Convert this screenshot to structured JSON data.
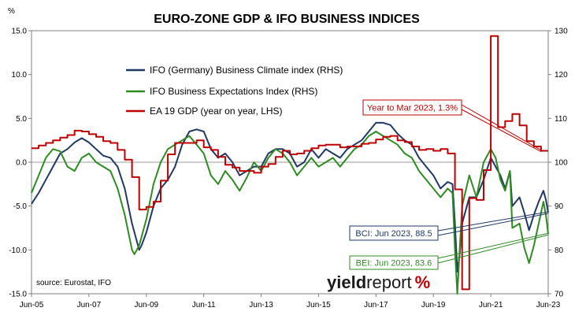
{
  "chart_data": {
    "type": "line",
    "title": "EURO-ZONE GDP & IFO BUSINESS INDICES",
    "y_left": {
      "unit": "%",
      "range": [
        -15,
        15
      ],
      "ticks": [
        "15.0",
        "10.0",
        "5.0",
        "0.0",
        "-5.0",
        "-10.0",
        "-15.0"
      ]
    },
    "y_right": {
      "range": [
        70,
        130
      ],
      "ticks": [
        "130",
        "120",
        "110",
        "100",
        "90",
        "80",
        "70"
      ]
    },
    "x": {
      "range": [
        "2005-06",
        "2023-06"
      ],
      "ticks": [
        "Jun-05",
        "Jun-07",
        "Jun-09",
        "Jun-11",
        "Jun-13",
        "Jun-15",
        "Jun-17",
        "Jun-19",
        "Jun-21",
        "Jun-23"
      ]
    },
    "legend_placement": "top-left",
    "source": "source: Eurostat, IFO",
    "watermark": {
      "part1": "yield",
      "part2": "report",
      "part3": "%"
    },
    "series": [
      {
        "name": "IFO (Germany) Business Climate index (RHS)",
        "axis": "right",
        "color": "#1f3864",
        "points": [
          [
            "2005-06",
            90.5
          ],
          [
            "2005-09",
            93
          ],
          [
            "2005-12",
            96
          ],
          [
            "2006-03",
            99
          ],
          [
            "2006-06",
            102
          ],
          [
            "2006-09",
            103
          ],
          [
            "2006-12",
            104.5
          ],
          [
            "2007-03",
            105.5
          ],
          [
            "2007-06",
            104.5
          ],
          [
            "2007-09",
            103
          ],
          [
            "2007-12",
            101.5
          ],
          [
            "2008-03",
            101
          ],
          [
            "2008-06",
            99
          ],
          [
            "2008-09",
            94
          ],
          [
            "2008-12",
            86
          ],
          [
            "2009-03",
            80
          ],
          [
            "2009-04",
            81
          ],
          [
            "2009-06",
            84
          ],
          [
            "2009-09",
            90
          ],
          [
            "2009-12",
            94
          ],
          [
            "2010-03",
            96
          ],
          [
            "2010-06",
            99
          ],
          [
            "2010-09",
            104
          ],
          [
            "2010-12",
            107
          ],
          [
            "2011-03",
            107.5
          ],
          [
            "2011-06",
            107
          ],
          [
            "2011-09",
            103
          ],
          [
            "2011-12",
            101
          ],
          [
            "2012-03",
            102
          ],
          [
            "2012-06",
            100
          ],
          [
            "2012-09",
            97
          ],
          [
            "2012-12",
            98
          ],
          [
            "2013-03",
            99
          ],
          [
            "2013-06",
            99
          ],
          [
            "2013-09",
            102
          ],
          [
            "2013-12",
            103
          ],
          [
            "2014-03",
            103
          ],
          [
            "2014-06",
            102
          ],
          [
            "2014-09",
            99
          ],
          [
            "2014-12",
            100
          ],
          [
            "2015-03",
            103
          ],
          [
            "2015-06",
            101
          ],
          [
            "2015-09",
            103
          ],
          [
            "2015-12",
            102
          ],
          [
            "2016-03",
            101
          ],
          [
            "2016-06",
            103
          ],
          [
            "2016-09",
            104
          ],
          [
            "2016-12",
            105
          ],
          [
            "2017-03",
            107
          ],
          [
            "2017-06",
            109
          ],
          [
            "2017-09",
            109
          ],
          [
            "2017-12",
            108.5
          ],
          [
            "2018-03",
            106.5
          ],
          [
            "2018-06",
            105
          ],
          [
            "2018-09",
            104
          ],
          [
            "2018-12",
            101
          ],
          [
            "2019-03",
            99
          ],
          [
            "2019-06",
            97
          ],
          [
            "2019-09",
            94
          ],
          [
            "2019-12",
            95.5
          ],
          [
            "2020-02",
            95
          ],
          [
            "2020-03",
            86
          ],
          [
            "2020-04",
            75
          ],
          [
            "2020-05",
            79
          ],
          [
            "2020-06",
            86
          ],
          [
            "2020-09",
            92
          ],
          [
            "2020-12",
            92
          ],
          [
            "2021-03",
            96
          ],
          [
            "2021-06",
            101
          ],
          [
            "2021-08",
            99
          ],
          [
            "2021-10",
            97
          ],
          [
            "2021-12",
            94
          ],
          [
            "2022-02",
            98
          ],
          [
            "2022-03",
            90
          ],
          [
            "2022-06",
            92
          ],
          [
            "2022-08",
            88.5
          ],
          [
            "2022-10",
            84.5
          ],
          [
            "2022-12",
            88
          ],
          [
            "2023-02",
            91
          ],
          [
            "2023-04",
            93.5
          ],
          [
            "2023-05",
            91.5
          ],
          [
            "2023-06",
            88.5
          ]
        ]
      },
      {
        "name": "IFO Business Expectations Index (RHS)",
        "axis": "right",
        "color": "#2e8b22",
        "points": [
          [
            "2005-06",
            93
          ],
          [
            "2005-09",
            97
          ],
          [
            "2005-12",
            101
          ],
          [
            "2006-03",
            103
          ],
          [
            "2006-06",
            102.5
          ],
          [
            "2006-09",
            99
          ],
          [
            "2006-12",
            98
          ],
          [
            "2007-03",
            101
          ],
          [
            "2007-06",
            102
          ],
          [
            "2007-09",
            100
          ],
          [
            "2007-12",
            99
          ],
          [
            "2008-03",
            98
          ],
          [
            "2008-06",
            94
          ],
          [
            "2008-09",
            88
          ],
          [
            "2008-12",
            80
          ],
          [
            "2009-01",
            79
          ],
          [
            "2009-03",
            81
          ],
          [
            "2009-06",
            87
          ],
          [
            "2009-09",
            95
          ],
          [
            "2009-12",
            100
          ],
          [
            "2010-03",
            103
          ],
          [
            "2010-06",
            104
          ],
          [
            "2010-09",
            105
          ],
          [
            "2010-12",
            106
          ],
          [
            "2011-03",
            104
          ],
          [
            "2011-06",
            102
          ],
          [
            "2011-09",
            97
          ],
          [
            "2011-12",
            95
          ],
          [
            "2012-03",
            98
          ],
          [
            "2012-06",
            96
          ],
          [
            "2012-09",
            93.5
          ],
          [
            "2012-12",
            96.5
          ],
          [
            "2013-03",
            100
          ],
          [
            "2013-06",
            98
          ],
          [
            "2013-09",
            101
          ],
          [
            "2013-12",
            103
          ],
          [
            "2014-03",
            102
          ],
          [
            "2014-06",
            100
          ],
          [
            "2014-09",
            97
          ],
          [
            "2014-12",
            99
          ],
          [
            "2015-03",
            101
          ],
          [
            "2015-06",
            99
          ],
          [
            "2015-09",
            100
          ],
          [
            "2015-12",
            101
          ],
          [
            "2016-03",
            99
          ],
          [
            "2016-06",
            101
          ],
          [
            "2016-09",
            103
          ],
          [
            "2016-12",
            104
          ],
          [
            "2017-03",
            106
          ],
          [
            "2017-06",
            107
          ],
          [
            "2017-09",
            106
          ],
          [
            "2017-12",
            105
          ],
          [
            "2018-03",
            104
          ],
          [
            "2018-06",
            102
          ],
          [
            "2018-09",
            101
          ],
          [
            "2018-12",
            98
          ],
          [
            "2019-03",
            96
          ],
          [
            "2019-06",
            94
          ],
          [
            "2019-09",
            92
          ],
          [
            "2019-12",
            94
          ],
          [
            "2020-02",
            93
          ],
          [
            "2020-03",
            80
          ],
          [
            "2020-04",
            70
          ],
          [
            "2020-05",
            80
          ],
          [
            "2020-06",
            90
          ],
          [
            "2020-09",
            97
          ],
          [
            "2020-12",
            92
          ],
          [
            "2021-03",
            100
          ],
          [
            "2021-06",
            103
          ],
          [
            "2021-08",
            101
          ],
          [
            "2021-10",
            96
          ],
          [
            "2021-12",
            93.5
          ],
          [
            "2022-02",
            98
          ],
          [
            "2022-03",
            85
          ],
          [
            "2022-06",
            86
          ],
          [
            "2022-08",
            80.5
          ],
          [
            "2022-10",
            77
          ],
          [
            "2022-12",
            81
          ],
          [
            "2023-02",
            86
          ],
          [
            "2023-04",
            91
          ],
          [
            "2023-05",
            88
          ],
          [
            "2023-06",
            83.6
          ]
        ]
      },
      {
        "name": "EA 19 GDP (year on year, LHS)",
        "axis": "left",
        "color": "#c00000",
        "step": true,
        "points": [
          [
            "2005-06",
            1.6
          ],
          [
            "2005-09",
            1.9
          ],
          [
            "2005-12",
            2.2
          ],
          [
            "2006-03",
            2.5
          ],
          [
            "2006-06",
            2.8
          ],
          [
            "2006-09",
            3.1
          ],
          [
            "2006-12",
            3.6
          ],
          [
            "2007-03",
            3.5
          ],
          [
            "2007-06",
            3.2
          ],
          [
            "2007-09",
            2.9
          ],
          [
            "2007-12",
            2.4
          ],
          [
            "2008-03",
            2.2
          ],
          [
            "2008-06",
            1.4
          ],
          [
            "2008-09",
            0.3
          ],
          [
            "2008-12",
            -1.7
          ],
          [
            "2009-03",
            -5.4
          ],
          [
            "2009-06",
            -5.1
          ],
          [
            "2009-09",
            -4.5
          ],
          [
            "2009-12",
            -2.1
          ],
          [
            "2010-03",
            0.9
          ],
          [
            "2010-06",
            2.2
          ],
          [
            "2010-09",
            2.2
          ],
          [
            "2010-12",
            2.2
          ],
          [
            "2011-03",
            2.5
          ],
          [
            "2011-06",
            1.7
          ],
          [
            "2011-09",
            1.4
          ],
          [
            "2011-12",
            0.6
          ],
          [
            "2012-03",
            -0.3
          ],
          [
            "2012-06",
            -0.6
          ],
          [
            "2012-09",
            -1.0
          ],
          [
            "2012-12",
            -1.0
          ],
          [
            "2013-03",
            -1.2
          ],
          [
            "2013-06",
            -0.5
          ],
          [
            "2013-09",
            -0.2
          ],
          [
            "2013-12",
            0.6
          ],
          [
            "2014-03",
            1.3
          ],
          [
            "2014-06",
            0.9
          ],
          [
            "2014-09",
            1.0
          ],
          [
            "2014-12",
            1.3
          ],
          [
            "2015-03",
            1.6
          ],
          [
            "2015-06",
            1.9
          ],
          [
            "2015-09",
            2.0
          ],
          [
            "2015-12",
            2.0
          ],
          [
            "2016-03",
            1.7
          ],
          [
            "2016-06",
            1.8
          ],
          [
            "2016-09",
            1.8
          ],
          [
            "2016-12",
            2.1
          ],
          [
            "2017-03",
            2.2
          ],
          [
            "2017-06",
            2.6
          ],
          [
            "2017-09",
            2.9
          ],
          [
            "2017-12",
            3.0
          ],
          [
            "2018-03",
            2.5
          ],
          [
            "2018-06",
            2.3
          ],
          [
            "2018-09",
            1.8
          ],
          [
            "2018-12",
            1.4
          ],
          [
            "2019-03",
            1.5
          ],
          [
            "2019-06",
            1.3
          ],
          [
            "2019-09",
            1.5
          ],
          [
            "2019-12",
            1.0
          ],
          [
            "2020-03",
            -3.1
          ],
          [
            "2020-06",
            -14.5
          ],
          [
            "2020-09",
            -4.1
          ],
          [
            "2020-12",
            -4.3
          ],
          [
            "2021-03",
            -0.9
          ],
          [
            "2021-06",
            14.4
          ],
          [
            "2021-09",
            4.0
          ],
          [
            "2021-12",
            4.7
          ],
          [
            "2022-03",
            5.5
          ],
          [
            "2022-06",
            4.2
          ],
          [
            "2022-09",
            2.4
          ],
          [
            "2022-12",
            1.8
          ],
          [
            "2023-03",
            1.3
          ],
          [
            "2023-06",
            1.3
          ]
        ]
      }
    ],
    "annotations": [
      {
        "text": "Year to Mar 2023, 1.3%",
        "color": "#c00000",
        "points_to": [
          "2023-03",
          1.3
        ],
        "axis": "left"
      },
      {
        "text": "BCI: Jun 2023, 88.5",
        "color": "#1f3864",
        "points_to": [
          "2023-06",
          88.5
        ],
        "axis": "right"
      },
      {
        "text": "BEI: Jun 2023, 83.6",
        "color": "#2e8b22",
        "points_to": [
          "2023-06",
          83.6
        ],
        "axis": "right"
      }
    ]
  }
}
